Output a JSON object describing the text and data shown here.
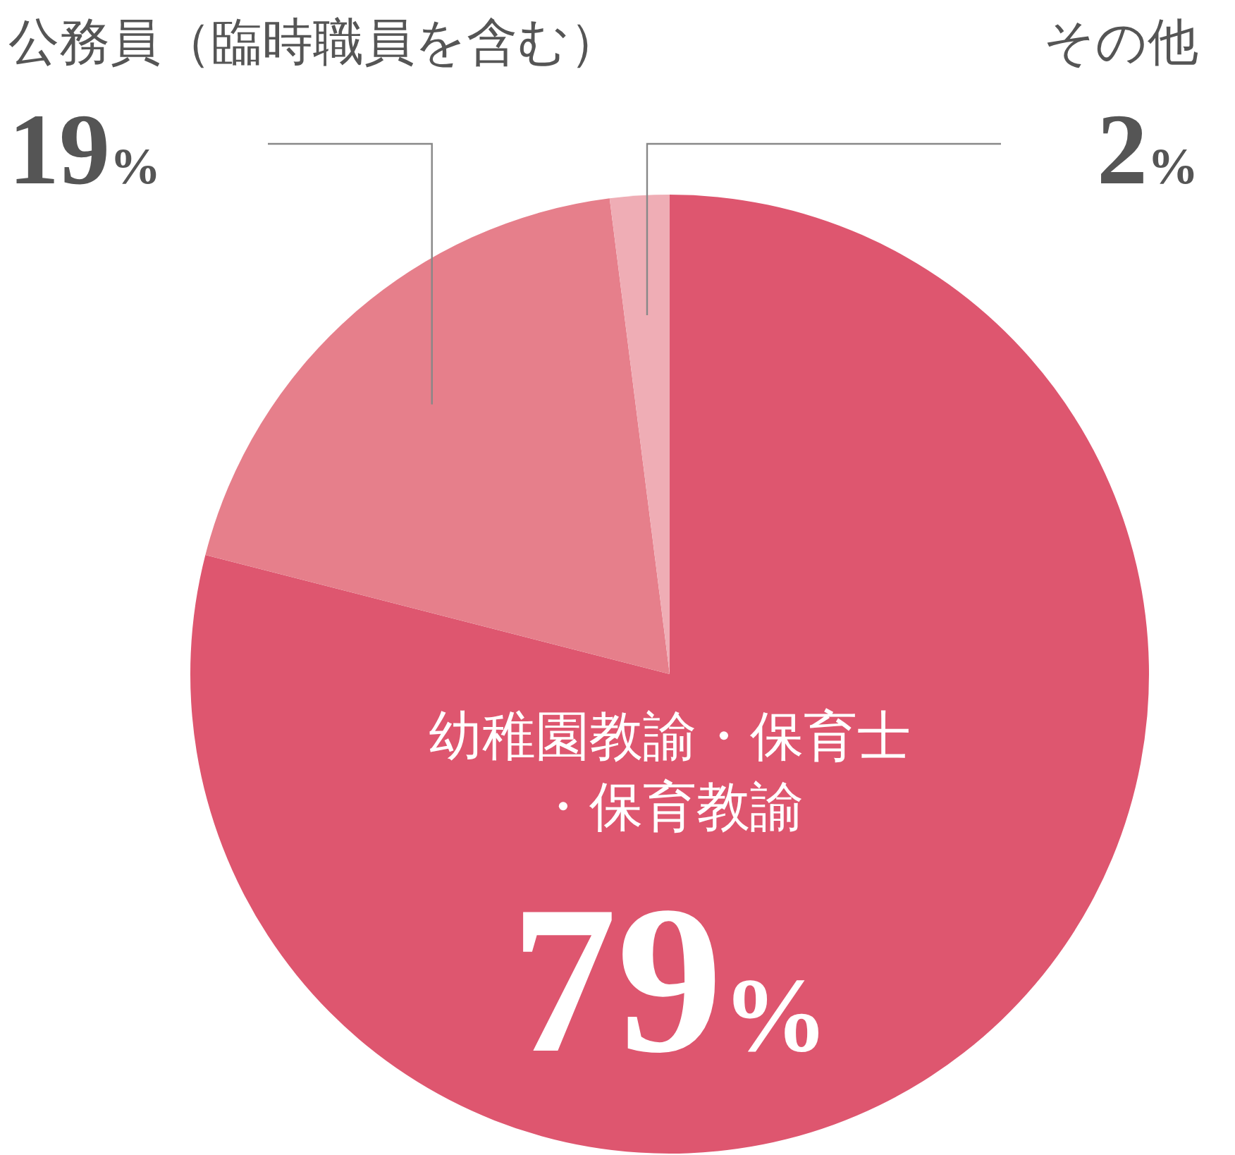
{
  "chart_data": {
    "type": "pie",
    "categories": [
      "幼稚園教諭・保育士・保育教諭",
      "公務員（臨時職員を含む）",
      "その他"
    ],
    "values": [
      79,
      19,
      2
    ],
    "colors": [
      "#de566f",
      "#e67f8b",
      "#efadb5"
    ],
    "value_labels": [
      "79%",
      "19%",
      "2%"
    ]
  }
}
